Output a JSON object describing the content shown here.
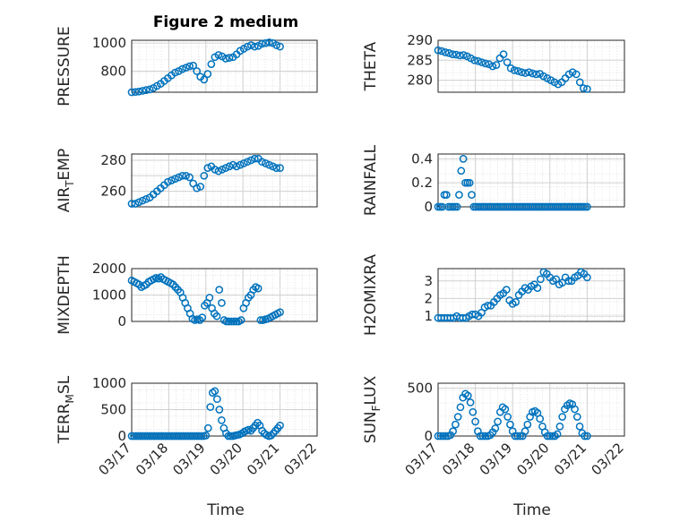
{
  "figure": {
    "title": "Figure 2 medium",
    "xlabel": "Time"
  },
  "chart_data": [
    {
      "type": "scatter",
      "ylabel": "PRESSURE",
      "sub": "",
      "ylim": [
        650,
        1020
      ],
      "yticks": [
        800,
        1000
      ],
      "show_xticks": false,
      "series": [
        {
          "values": [
            650,
            652,
            655,
            660,
            665,
            670,
            680,
            695,
            710,
            730,
            750,
            770,
            790,
            800,
            815,
            825,
            835,
            840,
            800,
            760,
            740,
            780,
            850,
            900,
            915,
            905,
            890,
            895,
            900,
            920,
            945,
            960,
            975,
            985,
            975,
            980,
            995,
            1000,
            1005,
            1000,
            985,
            975
          ]
        }
      ]
    },
    {
      "type": "scatter",
      "ylabel": "THETA",
      "sub": "",
      "ylim": [
        277,
        290
      ],
      "yticks": [
        280,
        285,
        290
      ],
      "show_xticks": false,
      "series": [
        {
          "values": [
            287.5,
            287.3,
            287.0,
            286.8,
            286.5,
            286.4,
            286.2,
            286.3,
            286.0,
            285.5,
            285.0,
            284.8,
            284.5,
            284.2,
            284.0,
            283.5,
            283.8,
            285.5,
            286.5,
            284.5,
            283.0,
            282.5,
            282.3,
            282.0,
            281.8,
            282.0,
            281.7,
            281.5,
            281.6,
            281.0,
            280.5,
            280.0,
            279.5,
            279.0,
            279.5,
            280.5,
            281.5,
            282.0,
            281.5,
            279.5,
            278.0,
            277.8
          ]
        }
      ]
    },
    {
      "type": "scatter",
      "ylabel": "AIR",
      "sub": "T",
      "ylabel2": "EMP",
      "ylim": [
        250,
        284
      ],
      "yticks": [
        260,
        270,
        280
      ],
      "tick_labels": [
        "260",
        "",
        "280"
      ],
      "show_xticks": false,
      "series": [
        {
          "values": [
            252,
            252,
            253,
            254,
            255,
            256,
            258,
            260,
            262,
            264,
            266,
            267,
            268,
            269,
            270,
            270,
            269,
            265,
            262,
            263,
            270,
            275,
            276,
            274,
            273,
            274,
            275,
            276,
            277,
            276,
            277,
            278,
            279,
            280,
            281,
            281,
            279,
            278,
            277,
            276,
            275,
            275
          ]
        }
      ]
    },
    {
      "type": "scatter",
      "ylabel": "RAINFALL",
      "sub": "",
      "ylim": [
        0,
        0.44
      ],
      "yticks": [
        0,
        0.2,
        0.4
      ],
      "show_xticks": false,
      "series": [
        {
          "values": [
            0,
            0,
            0,
            0.1,
            0.1,
            0,
            0,
            0,
            0,
            0,
            0.1,
            0.3,
            0.4,
            0.2,
            0.2,
            0.2,
            0.1,
            0,
            0,
            0,
            0,
            0,
            0,
            0,
            0,
            0,
            0,
            0,
            0,
            0,
            0,
            0,
            0,
            0,
            0,
            0,
            0,
            0,
            0,
            0,
            0,
            0,
            0,
            0,
            0,
            0,
            0,
            0,
            0,
            0,
            0,
            0,
            0,
            0,
            0,
            0,
            0,
            0,
            0,
            0,
            0,
            0,
            0,
            0,
            0,
            0,
            0,
            0,
            0,
            0,
            0,
            0
          ]
        }
      ]
    },
    {
      "type": "scatter",
      "ylabel": "MIXDEPTH",
      "sub": "",
      "ylim": [
        0,
        2000
      ],
      "yticks": [
        0,
        1000,
        2000
      ],
      "show_xticks": false,
      "series": [
        {
          "values": [
            1550,
            1500,
            1450,
            1400,
            1300,
            1350,
            1400,
            1500,
            1550,
            1600,
            1650,
            1620,
            1680,
            1600,
            1550,
            1500,
            1450,
            1400,
            1300,
            1200,
            1100,
            900,
            700,
            500,
            300,
            100,
            50,
            80,
            50,
            150,
            600,
            700,
            900,
            500,
            300,
            200,
            1200,
            700,
            50,
            0,
            0,
            0,
            0,
            0,
            0,
            50,
            500,
            700,
            900,
            1000,
            1200,
            1300,
            1250,
            50,
            50,
            80,
            100,
            150,
            200,
            250,
            300,
            350
          ]
        }
      ]
    },
    {
      "type": "scatter",
      "ylabel": "H2OMIXRA",
      "sub": "",
      "ylim": [
        0.7,
        3.7
      ],
      "yticks": [
        1,
        2,
        3
      ],
      "show_xticks": false,
      "series": [
        {
          "values": [
            0.9,
            0.9,
            0.9,
            0.9,
            0.9,
            0.9,
            1.0,
            0.9,
            0.9,
            0.9,
            1.0,
            1.1,
            1.1,
            1.0,
            1.2,
            1.5,
            1.6,
            1.6,
            1.8,
            2.0,
            2.2,
            2.3,
            2.5,
            1.9,
            1.7,
            1.8,
            2.2,
            2.4,
            2.6,
            2.5,
            2.7,
            2.8,
            2.6,
            3.1,
            3.5,
            3.4,
            3.2,
            3.0,
            3.1,
            2.8,
            2.9,
            3.2,
            3.0,
            3.0,
            3.2,
            3.3,
            3.5,
            3.4,
            3.2
          ]
        }
      ]
    },
    {
      "type": "scatter",
      "ylabel": "TERR",
      "sub": "M",
      "ylabel2": "SL",
      "ylim": [
        0,
        1000
      ],
      "yticks": [
        0,
        500,
        1000
      ],
      "show_xticks": true,
      "series": [
        {
          "values": [
            0,
            0,
            0,
            0,
            0,
            0,
            0,
            0,
            0,
            0,
            0,
            0,
            0,
            0,
            0,
            0,
            0,
            0,
            0,
            0,
            0,
            0,
            0,
            0,
            0,
            0,
            0,
            0,
            0,
            0,
            0,
            0,
            0,
            10,
            150,
            550,
            820,
            850,
            700,
            500,
            300,
            150,
            50,
            0,
            0,
            0,
            10,
            20,
            30,
            50,
            80,
            100,
            120,
            100,
            150,
            200,
            250,
            200,
            100,
            50,
            20,
            0,
            10,
            50,
            100,
            150,
            200
          ]
        }
      ]
    },
    {
      "type": "scatter",
      "ylabel": "SUN",
      "sub": "F",
      "ylabel2": "LUX",
      "ylim": [
        0,
        550
      ],
      "yticks": [
        0,
        500
      ],
      "show_xticks": true,
      "series": [
        {
          "values": [
            0,
            0,
            0,
            0,
            0,
            10,
            50,
            120,
            200,
            300,
            400,
            440,
            420,
            350,
            250,
            150,
            50,
            0,
            0,
            0,
            0,
            10,
            40,
            80,
            150,
            250,
            300,
            280,
            200,
            120,
            50,
            0,
            0,
            0,
            0,
            50,
            120,
            200,
            250,
            260,
            240,
            180,
            100,
            40,
            0,
            0,
            0,
            0,
            20,
            100,
            200,
            280,
            320,
            340,
            330,
            280,
            200,
            100,
            30,
            0,
            0
          ]
        }
      ]
    }
  ],
  "xaxis": {
    "tick_labels": [
      "03/17",
      "03/18",
      "03/19",
      "03/20",
      "03/21",
      "03/22"
    ],
    "data_range": [
      0,
      5
    ],
    "data_extent": [
      0,
      4
    ]
  },
  "colors": {
    "marker": "#0072BD",
    "axis": "#262626",
    "grid": "#d0d0d0"
  }
}
